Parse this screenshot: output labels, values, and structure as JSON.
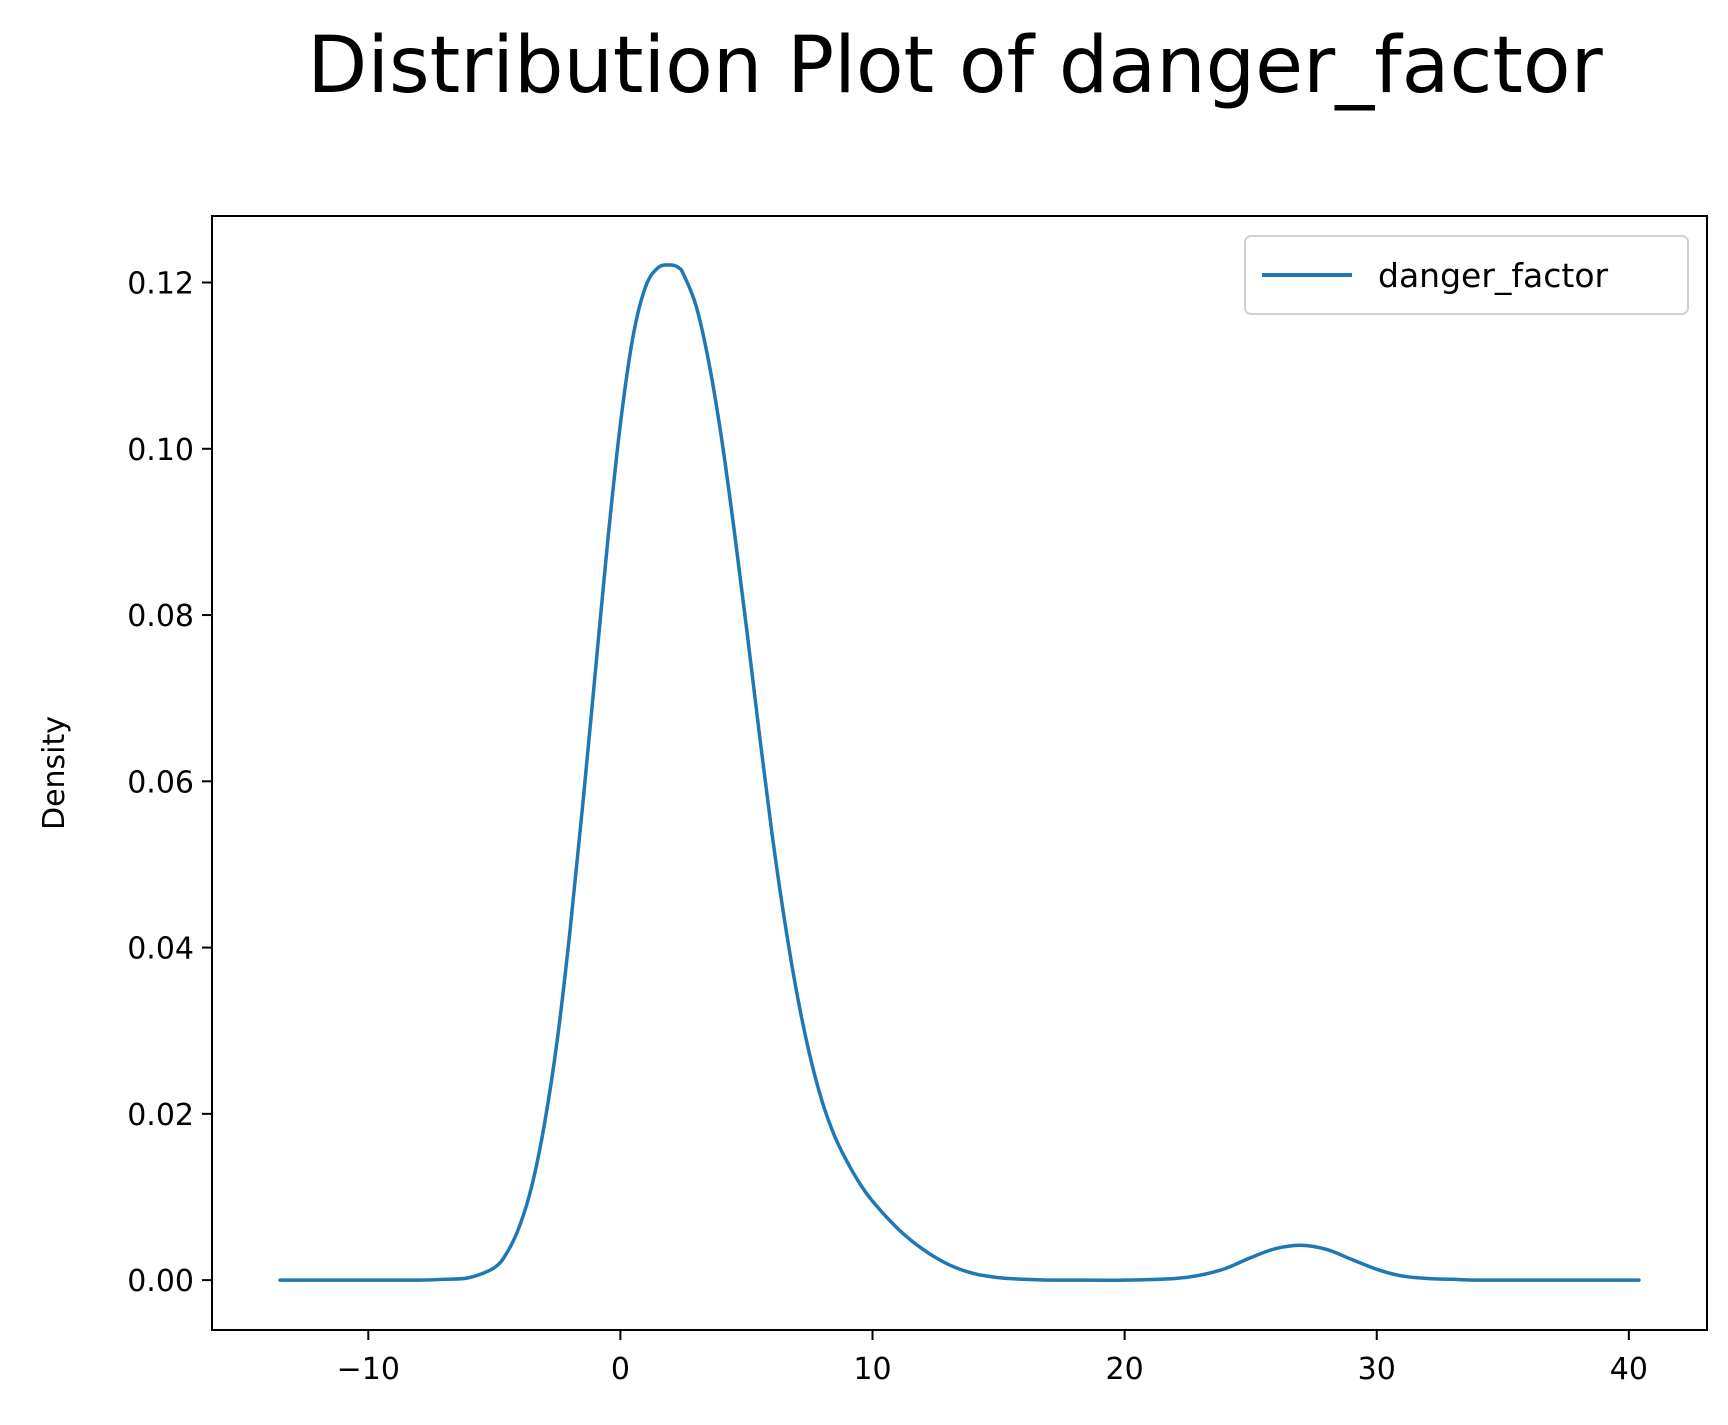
{
  "chart_data": {
    "type": "line",
    "title": "Distribution Plot of danger_factor",
    "xlabel": "",
    "ylabel": "Density",
    "xlim": [
      -16.2,
      43.1
    ],
    "ylim": [
      -0.006,
      0.128
    ],
    "xticks": [
      -10,
      0,
      10,
      20,
      30,
      40
    ],
    "xtick_labels": [
      "−10",
      "0",
      "10",
      "20",
      "30",
      "40"
    ],
    "yticks": [
      0.0,
      0.02,
      0.04,
      0.06,
      0.08,
      0.1,
      0.12
    ],
    "ytick_labels": [
      "0.00",
      "0.02",
      "0.04",
      "0.06",
      "0.08",
      "0.10",
      "0.12"
    ],
    "grid": false,
    "legend": "top-right",
    "series": [
      {
        "name": "danger_factor",
        "color": "#1f77b4",
        "x": [
          -13.5,
          -10,
          -8,
          -7,
          -6,
          -5,
          -4.5,
          -4,
          -3.5,
          -3,
          -2.5,
          -2,
          -1.5,
          -1,
          -0.5,
          0,
          0.5,
          1,
          1.5,
          2,
          2.3,
          2.5,
          3,
          3.5,
          4,
          4.5,
          5,
          5.5,
          6,
          6.5,
          7,
          7.5,
          8,
          8.5,
          9,
          9.5,
          10,
          11,
          12,
          13,
          14,
          15,
          16,
          17,
          18,
          20,
          22,
          23,
          24,
          25,
          26,
          27,
          28,
          29,
          30,
          31,
          32,
          33,
          34,
          36,
          38,
          40.4
        ],
        "y": [
          0.0,
          0.0,
          0.0,
          0.0001,
          0.0003,
          0.0015,
          0.0033,
          0.0065,
          0.0115,
          0.019,
          0.029,
          0.042,
          0.057,
          0.073,
          0.089,
          0.103,
          0.1135,
          0.1195,
          0.1218,
          0.1221,
          0.1218,
          0.121,
          0.1172,
          0.1105,
          0.1015,
          0.0905,
          0.0785,
          0.066,
          0.054,
          0.0435,
          0.0345,
          0.0272,
          0.0215,
          0.0173,
          0.0142,
          0.0116,
          0.0095,
          0.0062,
          0.0037,
          0.0019,
          0.0008,
          0.0003,
          0.0001,
          0.0,
          0.0,
          0.0,
          0.0002,
          0.0006,
          0.0014,
          0.0027,
          0.0038,
          0.0042,
          0.0037,
          0.0025,
          0.0013,
          0.0005,
          0.0002,
          0.0001,
          0.0,
          0.0,
          0.0,
          0.0
        ]
      }
    ]
  }
}
